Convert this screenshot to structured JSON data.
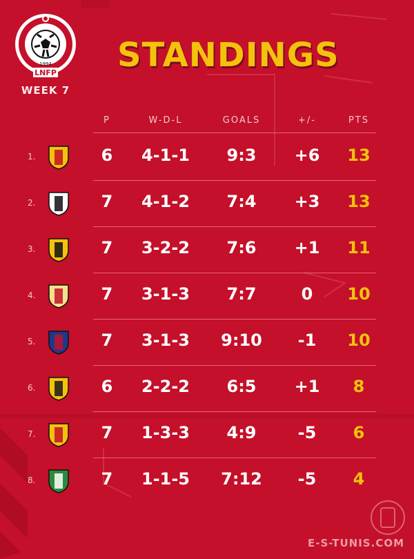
{
  "header": {
    "logo_text": "LNFP",
    "logo_year": "1994",
    "week_label": "WEEK 7",
    "title": "STANDINGS"
  },
  "columns": {
    "p": "P",
    "wdl": "W-D-L",
    "goals": "GOALS",
    "diff": "+/-",
    "pts": "PTS"
  },
  "rows": [
    {
      "rank": "1.",
      "crest_icon": "esperance-crest-icon",
      "colors": [
        "#f4c20d",
        "#c4102a"
      ],
      "p": "6",
      "wdl": "4-1-1",
      "goals": "9:3",
      "diff": "+6",
      "pts": "13"
    },
    {
      "rank": "2.",
      "crest_icon": "css-crest-icon",
      "colors": [
        "#ffffff",
        "#111111"
      ],
      "p": "7",
      "wdl": "4-1-2",
      "goals": "7:4",
      "diff": "+3",
      "pts": "13"
    },
    {
      "rank": "3.",
      "crest_icon": "usmo-crest-icon",
      "colors": [
        "#f4c20d",
        "#111111"
      ],
      "p": "7",
      "wdl": "3-2-2",
      "goals": "7:6",
      "diff": "+1",
      "pts": "11"
    },
    {
      "rank": "4.",
      "crest_icon": "usm-crest-icon",
      "colors": [
        "#f6e18a",
        "#c4102a"
      ],
      "p": "7",
      "wdl": "3-1-3",
      "goals": "7:7",
      "diff": "0",
      "pts": "10"
    },
    {
      "rank": "5.",
      "crest_icon": "ust-crest-icon",
      "colors": [
        "#1b3a8c",
        "#c4102a"
      ],
      "p": "7",
      "wdl": "3-1-3",
      "goals": "9:10",
      "diff": "-1",
      "pts": "10"
    },
    {
      "rank": "6.",
      "crest_icon": "est-crest-icon",
      "colors": [
        "#f4c20d",
        "#1a1a1a"
      ],
      "p": "6",
      "wdl": "2-2-2",
      "goals": "6:5",
      "diff": "+1",
      "pts": "8"
    },
    {
      "rank": "7.",
      "crest_icon": "es-zarzis-crest-icon",
      "colors": [
        "#f4c20d",
        "#c4102a"
      ],
      "p": "7",
      "wdl": "1-3-3",
      "goals": "4:9",
      "diff": "-5",
      "pts": "6"
    },
    {
      "rank": "8.",
      "crest_icon": "cshl-crest-icon",
      "colors": [
        "#2e8b3d",
        "#ffffff"
      ],
      "p": "7",
      "wdl": "1-1-5",
      "goals": "7:12",
      "diff": "-5",
      "pts": "4"
    }
  ],
  "footer": {
    "site": "E-S-TUNIS.COM"
  }
}
